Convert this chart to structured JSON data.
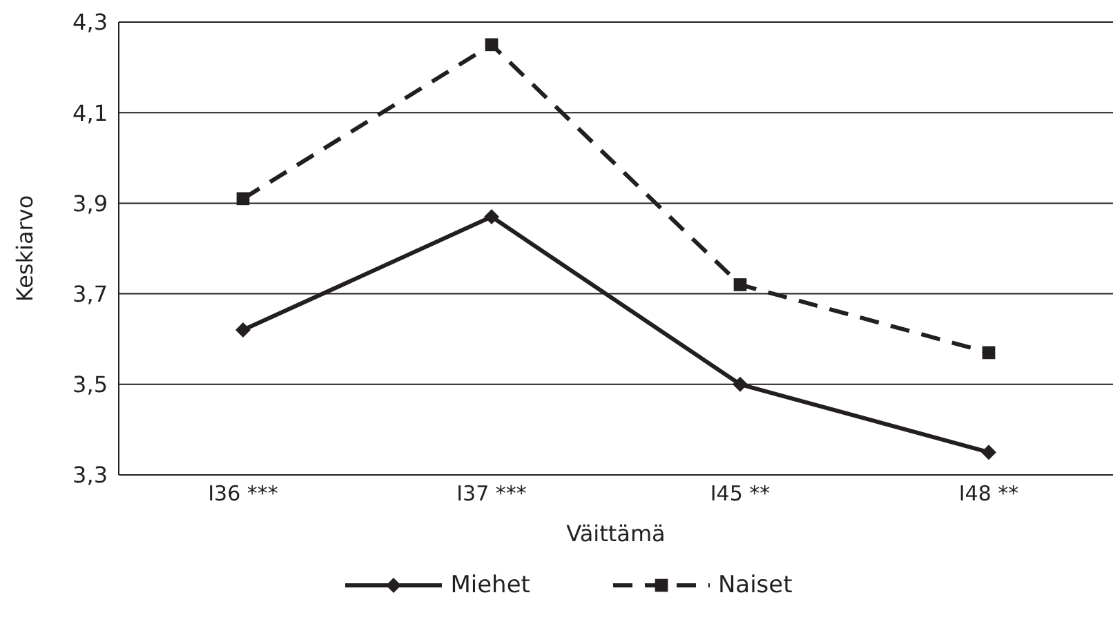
{
  "chart_data": {
    "type": "line",
    "xlabel": "Väittämä",
    "ylabel": "Keskiarvo",
    "categories": [
      "I36 ***",
      "I37 ***",
      "I45 **",
      "I48 **"
    ],
    "series": [
      {
        "name": "Miehet",
        "color": "#231f20",
        "values": [
          3.62,
          3.87,
          3.5,
          3.35
        ],
        "marker": "diamond",
        "line_style": "solid"
      },
      {
        "name": "Naiset",
        "color": "#231f20",
        "values": [
          3.91,
          4.25,
          3.72,
          3.57
        ],
        "marker": "square",
        "line_style": "dashed"
      }
    ],
    "ylim": [
      3.3,
      4.3
    ],
    "yticks": [
      {
        "value": 3.3,
        "label": "3,3"
      },
      {
        "value": 3.5,
        "label": "3,5"
      },
      {
        "value": 3.7,
        "label": "3,7"
      },
      {
        "value": 3.9,
        "label": "3,9"
      },
      {
        "value": 4.1,
        "label": "4,1"
      },
      {
        "value": 4.3,
        "label": "4,3"
      }
    ],
    "grid": "y",
    "legend": "bottom"
  }
}
